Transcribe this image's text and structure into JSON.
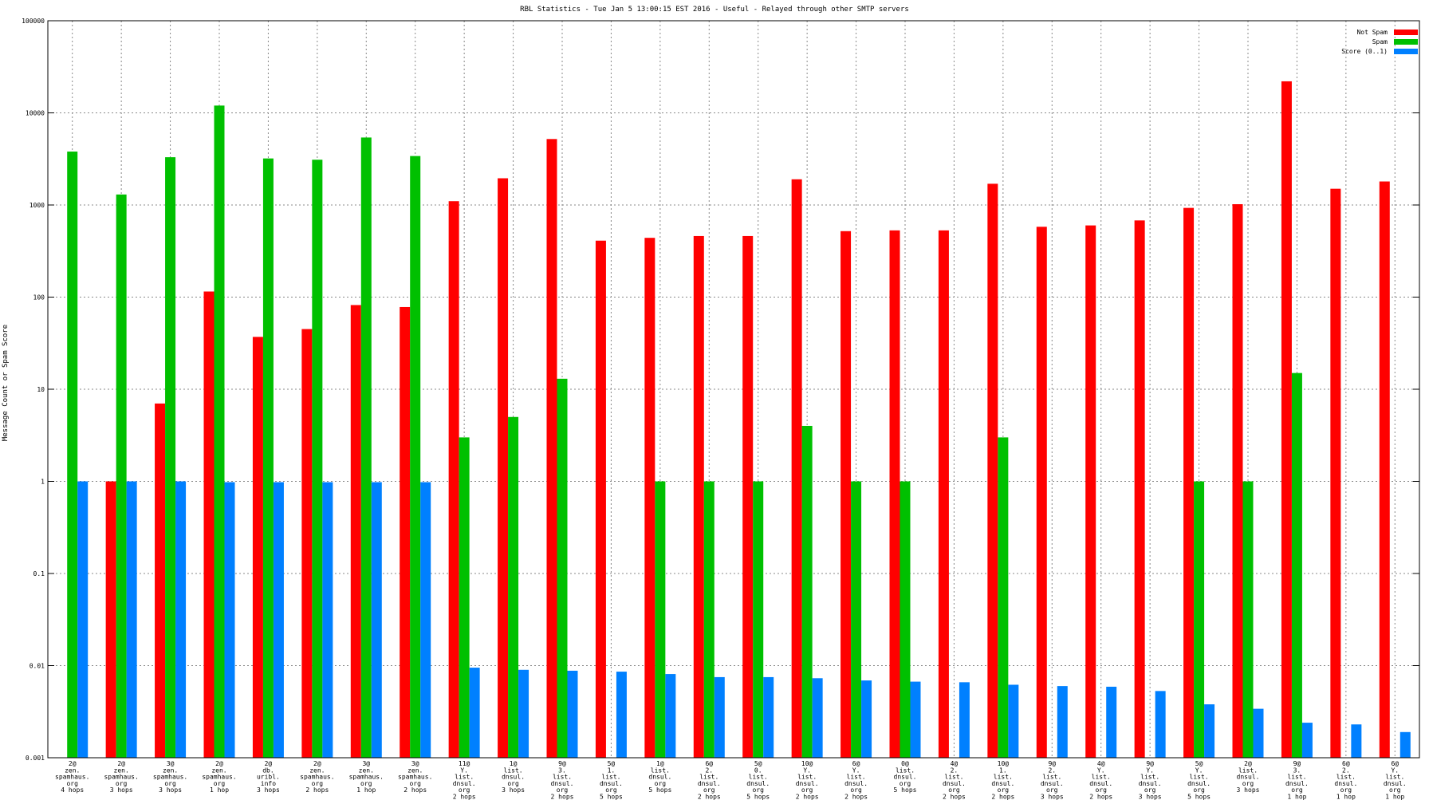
{
  "chart_data": {
    "type": "bar",
    "title": "RBL Statistics - Tue Jan  5 13:00:15 EST 2016 - Useful - Relayed through other SMTP servers",
    "xlabel": "",
    "ylabel": "Message Count or Spam Score",
    "yscale": "log",
    "ylim": [
      0.001,
      100000
    ],
    "yticks": [
      "0.001",
      "0.01",
      "0.1",
      "1",
      "10",
      "100",
      "1000",
      "10000",
      "100000"
    ],
    "grid": true,
    "legend_position": "top-right",
    "categories": [
      [
        "2@",
        "zen.",
        "spamhaus.",
        "org",
        "4 hops"
      ],
      [
        "2@",
        "zen.",
        "spamhaus.",
        "org",
        "3 hops"
      ],
      [
        "3@",
        "zen.",
        "spamhaus.",
        "org",
        "3 hops"
      ],
      [
        "2@",
        "zen.",
        "spamhaus.",
        "org",
        "1 hop"
      ],
      [
        "2@",
        "db.",
        "uribl.",
        "info",
        "3 hops"
      ],
      [
        "2@",
        "zen.",
        "spamhaus.",
        "org",
        "2 hops"
      ],
      [
        "3@",
        "zen.",
        "spamhaus.",
        "org",
        "1 hop"
      ],
      [
        "3@",
        "zen.",
        "spamhaus.",
        "org",
        "2 hops"
      ],
      [
        "11@",
        "Y.",
        "list.",
        "dnsul.",
        "org",
        "2 hops"
      ],
      [
        "1@",
        "list.",
        "dnsul.",
        "org",
        "3 hops"
      ],
      [
        "9@",
        "3.",
        "list.",
        "dnsul.",
        "org",
        "2 hops"
      ],
      [
        "5@",
        "1.",
        "list.",
        "dnsul.",
        "org",
        "5 hops"
      ],
      [
        "1@",
        "list.",
        "dnsul.",
        "org",
        "5 hops"
      ],
      [
        "6@",
        "2.",
        "list.",
        "dnsul.",
        "org",
        "2 hops"
      ],
      [
        "5@",
        "0.",
        "list.",
        "dnsul.",
        "org",
        "5 hops"
      ],
      [
        "10@",
        "Y.",
        "list.",
        "dnsul.",
        "org",
        "2 hops"
      ],
      [
        "6@",
        "Y.",
        "list.",
        "dnsul.",
        "org",
        "2 hops"
      ],
      [
        "0@",
        "list.",
        "dnsul.",
        "org",
        "5 hops"
      ],
      [
        "4@",
        "2.",
        "list.",
        "dnsul.",
        "org",
        "2 hops"
      ],
      [
        "10@",
        "1.",
        "list.",
        "dnsul.",
        "org",
        "2 hops"
      ],
      [
        "9@",
        "2.",
        "list.",
        "dnsul.",
        "org",
        "3 hops"
      ],
      [
        "4@",
        "Y.",
        "list.",
        "dnsul.",
        "org",
        "2 hops"
      ],
      [
        "9@",
        "Y.",
        "list.",
        "dnsul.",
        "org",
        "3 hops"
      ],
      [
        "5@",
        "Y.",
        "list.",
        "dnsul.",
        "org",
        "5 hops"
      ],
      [
        "2@",
        "list.",
        "dnsul.",
        "org",
        "3 hops"
      ],
      [
        "9@",
        "3.",
        "list.",
        "dnsul.",
        "org",
        "1 hop"
      ],
      [
        "6@",
        "2.",
        "list.",
        "dnsul.",
        "org",
        "1 hop"
      ],
      [
        "6@",
        "Y.",
        "list.",
        "dnsul.",
        "org",
        "1 hop"
      ]
    ],
    "series": [
      {
        "name": "Not Spam",
        "color": "#ff0000",
        "values": [
          null,
          1,
          7,
          115,
          37,
          45,
          82,
          78,
          1100,
          1950,
          5200,
          410,
          440,
          460,
          460,
          1900,
          520,
          530,
          530,
          1700,
          580,
          600,
          680,
          930,
          1020,
          22000,
          1500,
          1800
        ]
      },
      {
        "name": "Spam",
        "color": "#00c000",
        "values": [
          3800,
          1300,
          3300,
          12000,
          3200,
          3100,
          5400,
          3400,
          3,
          5,
          13,
          null,
          1,
          1,
          1,
          4,
          1,
          1,
          null,
          3,
          null,
          null,
          null,
          1,
          1,
          15,
          null,
          null
        ]
      },
      {
        "name": "Score (0..1)",
        "color": "#0080ff",
        "values": [
          1,
          1,
          1,
          0.98,
          0.98,
          0.98,
          0.98,
          0.98,
          0.0095,
          0.009,
          0.0088,
          0.0086,
          0.0081,
          0.0075,
          0.0075,
          0.0073,
          0.0069,
          0.0067,
          0.0066,
          0.0062,
          0.006,
          0.0059,
          0.0053,
          0.0038,
          0.0034,
          0.0024,
          0.0023,
          0.0019
        ]
      }
    ]
  }
}
